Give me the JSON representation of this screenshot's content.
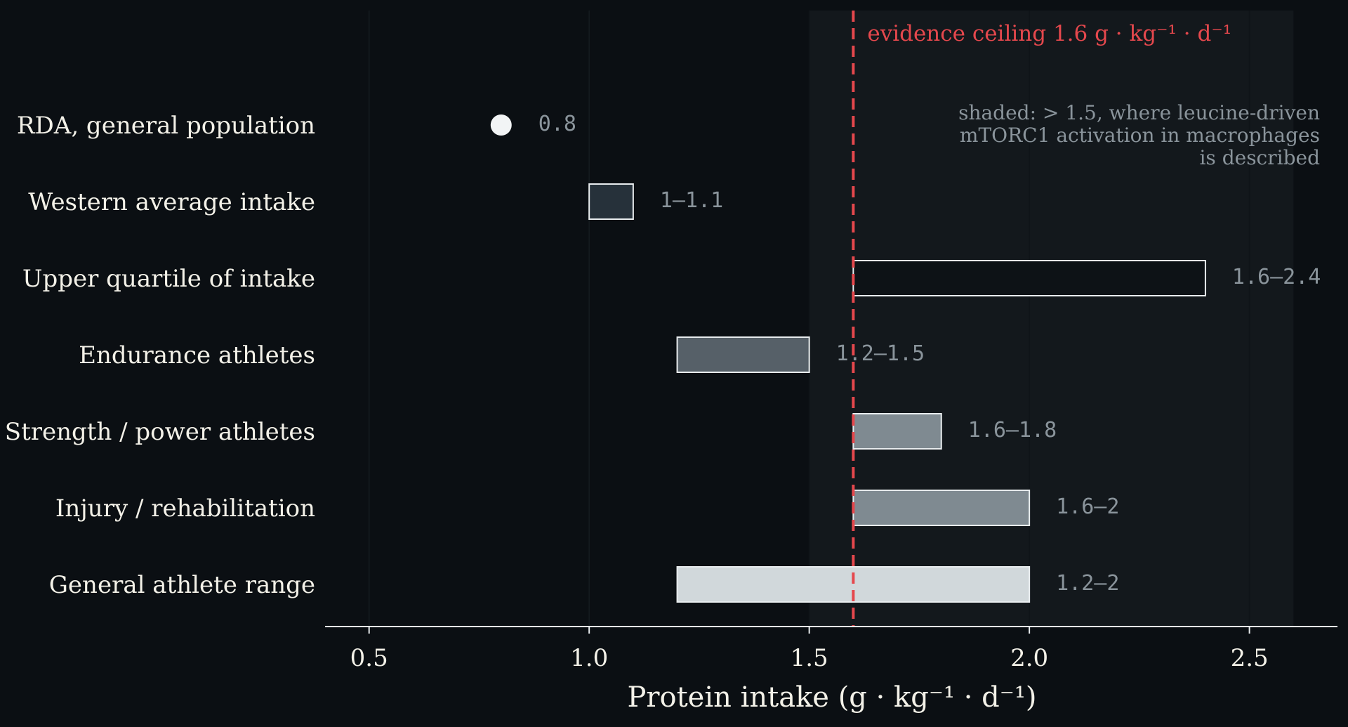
{
  "chart_data": {
    "type": "bar",
    "orientation": "horizontal",
    "categories": [
      "RDA, general population",
      "Western average intake",
      "Upper quartile of intake",
      "Endurance athletes",
      "Strength / power athletes",
      "Injury / rehabilitation",
      "General athlete range"
    ],
    "ranges": [
      {
        "low": 0.8,
        "high": 0.8,
        "label": "0.8",
        "fill": "#f2f4f5",
        "marker": "point"
      },
      {
        "low": 1.0,
        "high": 1.1,
        "label": "1–1.1",
        "fill": "#26313a",
        "marker": "bar"
      },
      {
        "low": 1.6,
        "high": 2.4,
        "label": "1.6–2.4",
        "fill": "#0d1216",
        "marker": "bar"
      },
      {
        "low": 1.2,
        "high": 1.5,
        "label": "1.2–1.5",
        "fill": "#566068",
        "marker": "bar"
      },
      {
        "low": 1.6,
        "high": 1.8,
        "label": "1.6–1.8",
        "fill": "#7f8a91",
        "marker": "bar"
      },
      {
        "low": 1.6,
        "high": 2.0,
        "label": "1.6–2",
        "fill": "#7f8a91",
        "marker": "bar"
      },
      {
        "low": 1.2,
        "high": 2.0,
        "label": "1.2–2",
        "fill": "#d1d8db",
        "marker": "bar"
      }
    ],
    "xlabel": "Protein intake (g · kg⁻¹ · d⁻¹)",
    "ylabel": "",
    "xlim": [
      0.4,
      2.7
    ],
    "xticks": [
      0.5,
      1.0,
      1.5,
      2.0,
      2.5
    ],
    "xtick_labels": [
      "0.5",
      "1.0",
      "1.5",
      "2.0",
      "2.5"
    ],
    "grid": "vertical",
    "shaded_region": {
      "from": 1.5,
      "to": 2.6,
      "note": "shaded: > 1.5, where leucine-driven mTORC1 activation in macrophages is described",
      "note_lines": [
        "shaded: > 1.5, where leucine-driven",
        "mTORC1 activation in macrophages",
        "is described"
      ]
    },
    "reference_line": {
      "x": 1.6,
      "label": "evidence ceiling 1.6 g · kg⁻¹ · d⁻¹"
    },
    "colors": {
      "background": "#0b0f13",
      "shade": "#13181c",
      "reference": "#e5484d",
      "label_text": "#f3f1e8",
      "value_text": "#8a949b",
      "bar_edge": "#e8ecee",
      "axis": "#e8ecee",
      "grid": "#151b20"
    }
  }
}
